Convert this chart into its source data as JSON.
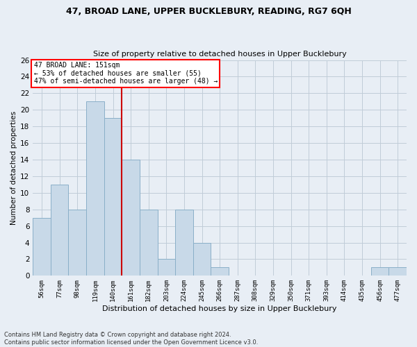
{
  "title1": "47, BROAD LANE, UPPER BUCKLEBURY, READING, RG7 6QH",
  "title2": "Size of property relative to detached houses in Upper Bucklebury",
  "xlabel": "Distribution of detached houses by size in Upper Bucklebury",
  "ylabel": "Number of detached properties",
  "footnote1": "Contains HM Land Registry data © Crown copyright and database right 2024.",
  "footnote2": "Contains public sector information licensed under the Open Government Licence v3.0.",
  "bin_labels": [
    "56sqm",
    "77sqm",
    "98sqm",
    "119sqm",
    "140sqm",
    "161sqm",
    "182sqm",
    "203sqm",
    "224sqm",
    "245sqm",
    "266sqm",
    "287sqm",
    "308sqm",
    "329sqm",
    "350sqm",
    "371sqm",
    "393sqm",
    "414sqm",
    "435sqm",
    "456sqm",
    "477sqm"
  ],
  "bar_values": [
    7,
    11,
    8,
    21,
    19,
    14,
    8,
    2,
    8,
    4,
    1,
    0,
    0,
    0,
    0,
    0,
    0,
    0,
    0,
    1,
    1
  ],
  "bar_color": "#c8d9e8",
  "bar_edge_color": "#8aafc8",
  "vline_x": 4.5,
  "vline_color": "#cc0000",
  "annotation_text": "47 BROAD LANE: 151sqm\n← 53% of detached houses are smaller (55)\n47% of semi-detached houses are larger (48) →",
  "annotation_box_color": "white",
  "annotation_box_edge": "red",
  "grid_color": "#c0ccd8",
  "bg_color": "#e8eef5",
  "ylim": [
    0,
    26
  ],
  "yticks": [
    0,
    2,
    4,
    6,
    8,
    10,
    12,
    14,
    16,
    18,
    20,
    22,
    24,
    26
  ]
}
